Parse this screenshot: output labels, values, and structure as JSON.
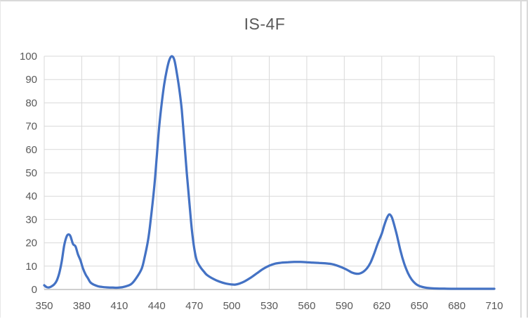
{
  "styles": {
    "line_color": "#4472C4",
    "gridline_color": "#D9D9D9",
    "axis_color": "#BFBFBF",
    "label_color": "#595959",
    "title_color": "#595959",
    "background": "#FFFFFF"
  },
  "chart_data": {
    "type": "line",
    "title": "IS-4F",
    "xlabel": "",
    "ylabel": "",
    "xlim": [
      350,
      710
    ],
    "ylim": [
      0,
      100
    ],
    "x_ticks": [
      350,
      380,
      410,
      440,
      470,
      500,
      530,
      560,
      590,
      620,
      650,
      680,
      710
    ],
    "y_ticks": [
      0,
      10,
      20,
      30,
      40,
      50,
      60,
      70,
      80,
      90,
      100
    ],
    "grid": true,
    "legend_position": "none",
    "series": [
      {
        "name": "IS-4F",
        "color": "#4472C4",
        "points": [
          [
            350,
            1.8
          ],
          [
            352,
            1.0
          ],
          [
            354,
            0.9
          ],
          [
            356,
            1.4
          ],
          [
            358,
            2.2
          ],
          [
            360,
            3.8
          ],
          [
            362,
            7
          ],
          [
            364,
            12
          ],
          [
            366,
            19
          ],
          [
            368,
            22.8
          ],
          [
            369.5,
            23.6
          ],
          [
            371,
            22.8
          ],
          [
            373,
            19.5
          ],
          [
            375,
            18.5
          ],
          [
            377,
            15
          ],
          [
            379,
            12.5
          ],
          [
            381,
            9
          ],
          [
            383,
            6.5
          ],
          [
            385,
            4.8
          ],
          [
            387,
            3
          ],
          [
            390,
            2
          ],
          [
            393,
            1.4
          ],
          [
            396,
            1.1
          ],
          [
            400,
            0.9
          ],
          [
            405,
            0.8
          ],
          [
            410,
            0.8
          ],
          [
            415,
            1.3
          ],
          [
            420,
            2.5
          ],
          [
            425,
            6
          ],
          [
            428,
            9
          ],
          [
            430,
            13
          ],
          [
            433,
            21
          ],
          [
            435,
            29
          ],
          [
            438,
            44
          ],
          [
            440,
            57
          ],
          [
            442,
            70
          ],
          [
            444,
            80
          ],
          [
            446,
            88
          ],
          [
            448,
            94
          ],
          [
            450,
            98.3
          ],
          [
            452,
            100
          ],
          [
            454,
            98.5
          ],
          [
            456,
            93
          ],
          [
            458,
            86
          ],
          [
            460,
            77
          ],
          [
            462,
            64
          ],
          [
            464,
            50
          ],
          [
            466,
            38
          ],
          [
            468,
            26
          ],
          [
            470,
            17.5
          ],
          [
            472,
            12.5
          ],
          [
            475,
            9.5
          ],
          [
            478,
            7.5
          ],
          [
            480,
            6.3
          ],
          [
            485,
            4.6
          ],
          [
            490,
            3.4
          ],
          [
            495,
            2.6
          ],
          [
            500,
            2.15
          ],
          [
            503,
            2.1
          ],
          [
            506,
            2.5
          ],
          [
            510,
            3.4
          ],
          [
            515,
            5
          ],
          [
            520,
            6.9
          ],
          [
            525,
            8.8
          ],
          [
            530,
            10.2
          ],
          [
            535,
            11.1
          ],
          [
            540,
            11.5
          ],
          [
            545,
            11.7
          ],
          [
            550,
            11.8
          ],
          [
            555,
            11.8
          ],
          [
            560,
            11.7
          ],
          [
            565,
            11.5
          ],
          [
            570,
            11.4
          ],
          [
            575,
            11.2
          ],
          [
            580,
            10.9
          ],
          [
            584,
            10.3
          ],
          [
            588,
            9.5
          ],
          [
            592,
            8.5
          ],
          [
            596,
            7.3
          ],
          [
            599,
            6.8
          ],
          [
            602,
            6.8
          ],
          [
            605,
            7.5
          ],
          [
            608,
            9
          ],
          [
            611,
            11.5
          ],
          [
            614,
            15.5
          ],
          [
            617,
            20
          ],
          [
            620,
            24
          ],
          [
            622,
            27.5
          ],
          [
            624,
            30.5
          ],
          [
            626,
            32.2
          ],
          [
            628,
            31
          ],
          [
            630,
            27.5
          ],
          [
            632,
            23.5
          ],
          [
            635,
            16.5
          ],
          [
            638,
            11
          ],
          [
            641,
            7
          ],
          [
            644,
            4.2
          ],
          [
            647,
            2.5
          ],
          [
            650,
            1.5
          ],
          [
            654,
            0.9
          ],
          [
            658,
            0.6
          ],
          [
            662,
            0.45
          ],
          [
            666,
            0.4
          ],
          [
            670,
            0.35
          ],
          [
            680,
            0.3
          ],
          [
            690,
            0.3
          ],
          [
            700,
            0.3
          ],
          [
            710,
            0.3
          ]
        ]
      }
    ]
  }
}
